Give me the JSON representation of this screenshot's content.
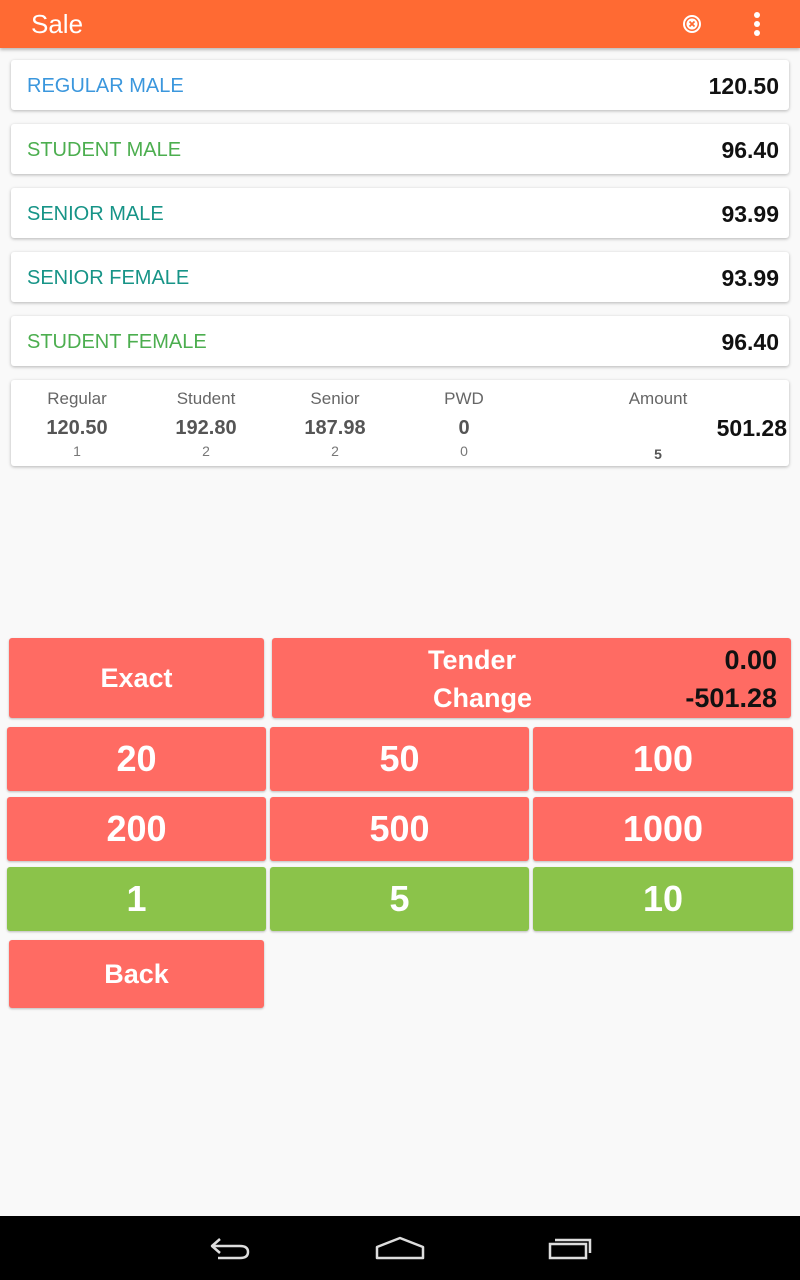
{
  "appbar": {
    "title": "Sale"
  },
  "items": [
    {
      "name": "REGULAR MALE",
      "price": "120.50",
      "color": "#3b97dd"
    },
    {
      "name": "STUDENT MALE",
      "price": "96.40",
      "color": "#4cae4f"
    },
    {
      "name": "SENIOR MALE",
      "price": "93.99",
      "color": "#179487"
    },
    {
      "name": "SENIOR FEMALE",
      "price": "93.99",
      "color": "#179487"
    },
    {
      "name": "STUDENT FEMALE",
      "price": "96.40",
      "color": "#4cae4f"
    }
  ],
  "summary": {
    "regular": {
      "label": "Regular",
      "value": "120.50",
      "count": "1"
    },
    "student": {
      "label": "Student",
      "value": "192.80",
      "count": "2"
    },
    "senior": {
      "label": "Senior",
      "value": "187.98",
      "count": "2"
    },
    "pwd": {
      "label": "PWD",
      "value": "0",
      "count": "0"
    },
    "amount": {
      "label": "Amount",
      "value": "501.28",
      "count": "5"
    }
  },
  "payment": {
    "exact_label": "Exact",
    "tender_label": "Tender",
    "tender_value": "0.00",
    "change_label": "Change",
    "change_value": "-501.28",
    "back_label": "Back"
  },
  "keypad": {
    "row1": [
      "20",
      "50",
      "100"
    ],
    "row2": [
      "200",
      "500",
      "1000"
    ],
    "row3": [
      "1",
      "5",
      "10"
    ]
  },
  "colors": {
    "appbar": "#ff6a33",
    "button_red": "#ff6b63",
    "button_green": "#8bc34a"
  },
  "icons": {
    "clear": "clear-circle-icon",
    "menu": "overflow-menu-icon",
    "back": "nav-back-icon",
    "home": "nav-home-icon",
    "recents": "nav-recents-icon"
  }
}
